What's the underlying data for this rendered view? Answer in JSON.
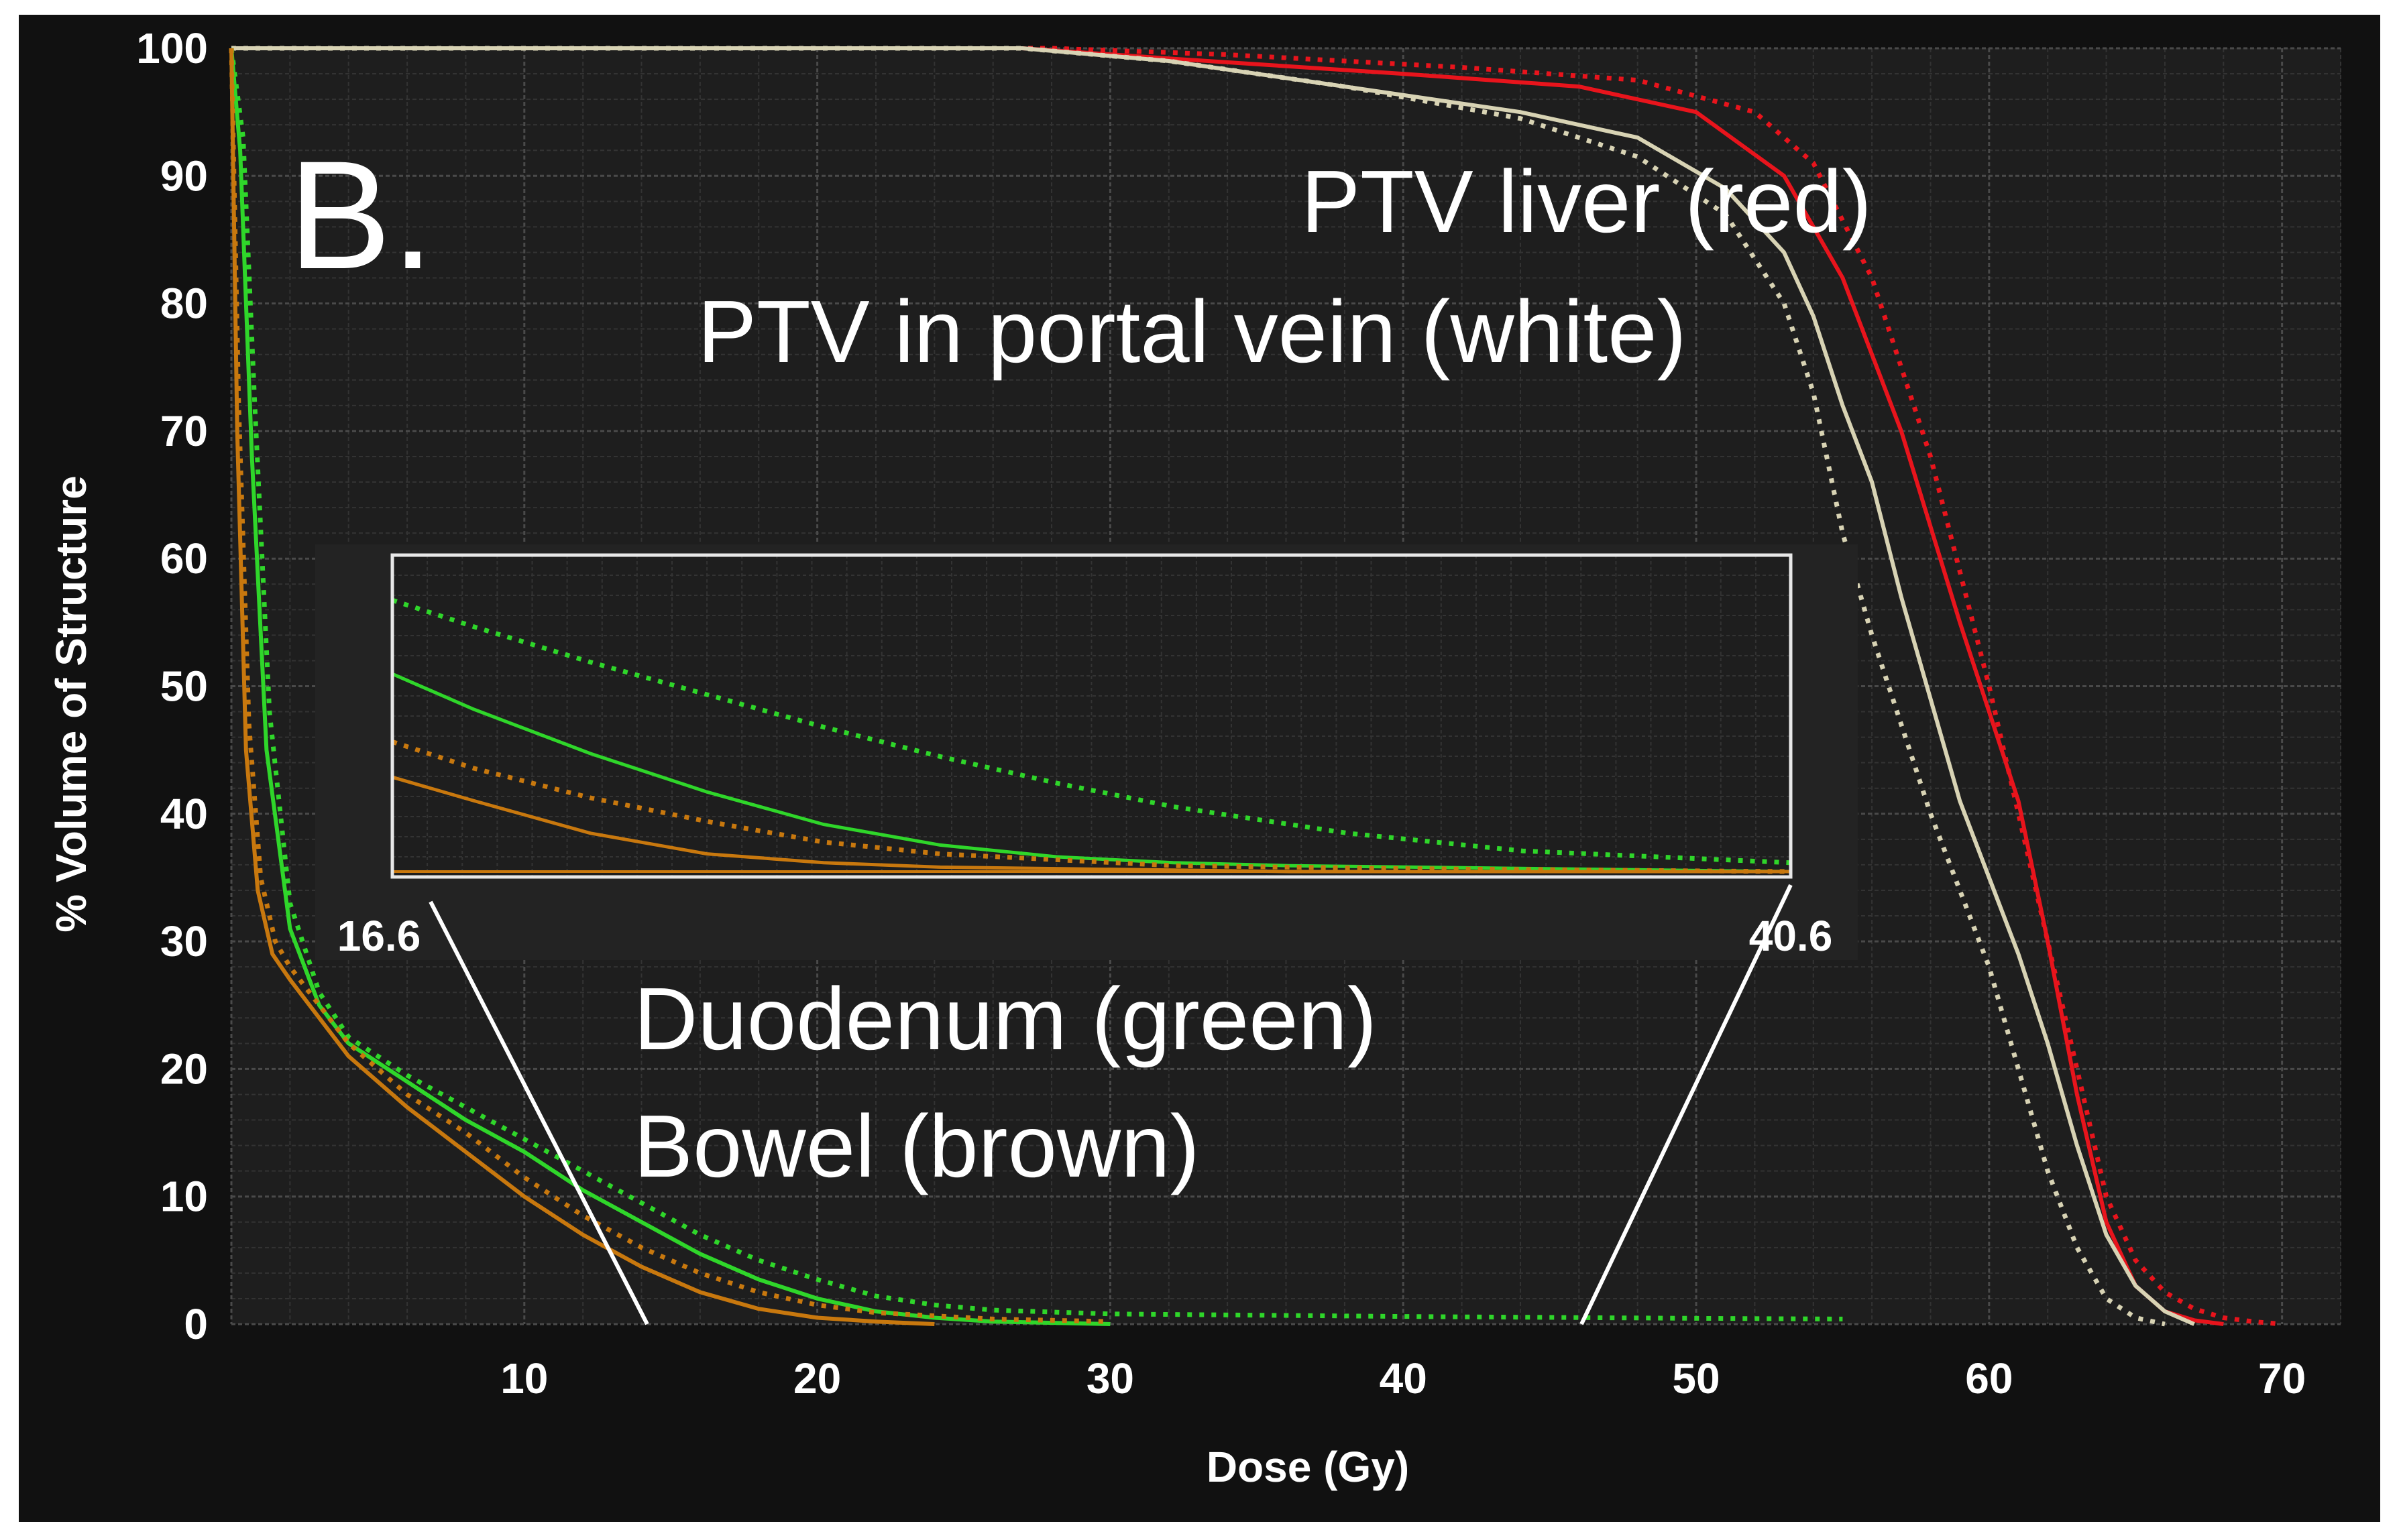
{
  "chart_data": {
    "type": "line",
    "panel_label": "B.",
    "xlabel": "Dose (Gy)",
    "ylabel": "% Volume of Structure",
    "xlim": [
      0,
      72
    ],
    "ylim": [
      0,
      100
    ],
    "xticks": [
      10,
      20,
      30,
      40,
      50,
      60,
      70
    ],
    "yticks": [
      0,
      10,
      20,
      30,
      40,
      50,
      60,
      70,
      80,
      90,
      100
    ],
    "grid": true,
    "colors": {
      "background": "#1e1e1e",
      "frame": "#111111",
      "grid_major": "#4a4a4a",
      "grid_minor": "#333333",
      "red": "#e8141c",
      "white": "#d8d3b4",
      "green": "#2fd62a",
      "brown": "#c8780e"
    },
    "annotations": {
      "ptv_liver": "PTV liver (red)",
      "ptv_portal": "PTV in portal vein (white)",
      "duodenum": "Duodenum (green)",
      "bowel": "Bowel (brown)"
    },
    "series": [
      {
        "name": "PTV liver (solid)",
        "color": "red",
        "dash": "solid",
        "x": [
          0,
          20,
          27,
          32,
          40,
          46,
          50,
          53,
          55,
          57,
          59,
          61,
          62,
          63,
          64,
          65,
          66,
          67,
          68
        ],
        "y": [
          100,
          100,
          100,
          99.2,
          98,
          97,
          95,
          90,
          82,
          70,
          55,
          41,
          30,
          18,
          8,
          3,
          1,
          0.3,
          0
        ]
      },
      {
        "name": "PTV liver (dotted)",
        "color": "red",
        "dash": "dotted",
        "x": [
          0,
          20,
          28,
          34,
          42,
          48,
          52,
          54,
          56,
          58,
          60,
          61,
          62,
          63,
          64,
          65,
          66,
          67,
          68,
          69,
          70
        ],
        "y": [
          100,
          100,
          100,
          99.5,
          98.5,
          97.5,
          95,
          91,
          82,
          68,
          50,
          40,
          30,
          20,
          10,
          5,
          2.5,
          1.2,
          0.5,
          0.2,
          0
        ]
      },
      {
        "name": "PTV in portal vein (solid)",
        "color": "white",
        "dash": "solid",
        "x": [
          0,
          20,
          27,
          32,
          38,
          44,
          48,
          51,
          53,
          54,
          55,
          56,
          57,
          58,
          59,
          60,
          61,
          62,
          63,
          64,
          65,
          66,
          67
        ],
        "y": [
          100,
          100,
          100,
          99,
          97,
          95,
          93,
          89,
          84,
          79,
          72,
          66,
          57,
          49,
          41,
          35,
          29,
          22,
          14,
          7,
          3,
          1,
          0
        ]
      },
      {
        "name": "PTV in portal vein (dotted)",
        "color": "white",
        "dash": "dotted",
        "x": [
          0,
          20,
          27,
          32,
          38,
          44,
          48,
          51,
          53,
          54,
          55,
          56,
          57,
          58,
          59,
          60,
          61,
          62,
          63,
          64,
          65,
          66
        ],
        "y": [
          100,
          100,
          100,
          99,
          97,
          94.5,
          91.5,
          87,
          80,
          73,
          62,
          54,
          47,
          40,
          34,
          28,
          20,
          12,
          6,
          2,
          0.5,
          0
        ]
      },
      {
        "name": "Duodenum (solid)",
        "color": "green",
        "dash": "solid",
        "x": [
          0,
          0.3,
          0.7,
          1.2,
          2,
          3,
          4,
          6,
          8,
          10,
          12,
          14,
          16,
          18,
          20,
          22,
          24,
          26,
          30
        ],
        "y": [
          100,
          92,
          68,
          45,
          31,
          25,
          22,
          19,
          16,
          13.5,
          10.5,
          8,
          5.5,
          3.5,
          2,
          1,
          0.5,
          0.2,
          0
        ]
      },
      {
        "name": "Duodenum (dotted)",
        "color": "green",
        "dash": "dotted",
        "x": [
          0,
          0.4,
          0.8,
          1.3,
          2,
          3,
          4,
          6,
          8,
          10,
          12,
          14,
          16,
          18,
          20,
          22,
          24,
          26,
          30,
          40,
          50,
          55
        ],
        "y": [
          100,
          93,
          72,
          48,
          33,
          26,
          22.5,
          19.5,
          17,
          14.5,
          12,
          9.5,
          7,
          5,
          3.5,
          2.2,
          1.5,
          1.1,
          0.8,
          0.6,
          0.45,
          0.4
        ]
      },
      {
        "name": "Bowel (solid)",
        "color": "brown",
        "dash": "solid",
        "x": [
          0,
          0.2,
          0.5,
          0.9,
          1.4,
          2,
          3,
          4,
          6,
          8,
          10,
          12,
          14,
          16,
          18,
          20,
          22,
          24
        ],
        "y": [
          100,
          70,
          45,
          34,
          29,
          27,
          24,
          21,
          17,
          13.5,
          10,
          7,
          4.5,
          2.5,
          1.2,
          0.5,
          0.2,
          0
        ]
      },
      {
        "name": "Bowel (dotted)",
        "color": "brown",
        "dash": "dotted",
        "x": [
          0,
          0.25,
          0.6,
          1,
          1.5,
          2,
          3,
          4,
          6,
          8,
          10,
          12,
          14,
          16,
          18,
          20,
          22,
          26,
          30
        ],
        "y": [
          100,
          72,
          47,
          35,
          30,
          28,
          25,
          22,
          18,
          15,
          11.5,
          8.5,
          6,
          4,
          2.5,
          1.5,
          0.9,
          0.4,
          0.2
        ]
      }
    ],
    "inset": {
      "xlim": [
        16.6,
        40.6
      ],
      "tick_labels": [
        "16.6",
        "40.6"
      ],
      "series": [
        {
          "color": "green",
          "dash": "dotted",
          "x": [
            16.6,
            18,
            20,
            22,
            24,
            26,
            28,
            30,
            33,
            36,
            40.6
          ],
          "y": [
            0.92,
            0.83,
            0.71,
            0.6,
            0.49,
            0.39,
            0.3,
            0.22,
            0.13,
            0.07,
            0.03
          ]
        },
        {
          "color": "green",
          "dash": "solid",
          "x": [
            16.6,
            18,
            20,
            22,
            24,
            26,
            28,
            30,
            32,
            40.6
          ],
          "y": [
            0.67,
            0.55,
            0.4,
            0.27,
            0.16,
            0.09,
            0.05,
            0.03,
            0.02,
            0.0
          ]
        },
        {
          "color": "brown",
          "dash": "dotted",
          "x": [
            16.6,
            18,
            20,
            22,
            24,
            26,
            28,
            30,
            34,
            40.6
          ],
          "y": [
            0.44,
            0.35,
            0.25,
            0.17,
            0.1,
            0.06,
            0.04,
            0.02,
            0.01,
            0.0
          ]
        },
        {
          "color": "brown",
          "dash": "solid",
          "x": [
            16.6,
            18,
            20,
            22,
            24,
            26,
            28,
            32,
            40.6
          ],
          "y": [
            0.32,
            0.24,
            0.13,
            0.06,
            0.03,
            0.015,
            0.01,
            0.0,
            0.0
          ]
        }
      ]
    }
  }
}
